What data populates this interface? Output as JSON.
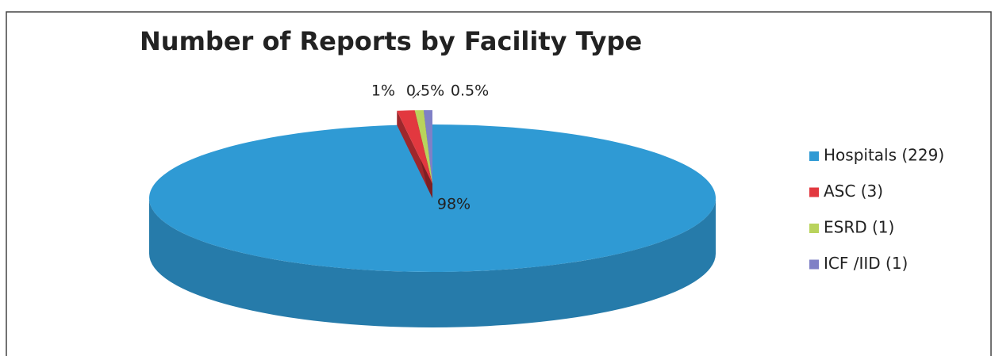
{
  "chart_data": {
    "type": "pie",
    "title": "Number of Reports by Facility Type",
    "categories": [
      "Hospitals (229)",
      "ASC (3)",
      "ESRD (1)",
      "ICF /IID (1)"
    ],
    "series": [
      {
        "values": [
          98,
          1,
          0.5,
          0.5
        ],
        "value_labels": [
          "98%",
          "1%",
          "0.5%",
          "0.5%"
        ],
        "colors": [
          "#2f9ad4",
          "#e2383f",
          "#b9d35c",
          "#7f80c6"
        ]
      }
    ],
    "legend": "right"
  }
}
